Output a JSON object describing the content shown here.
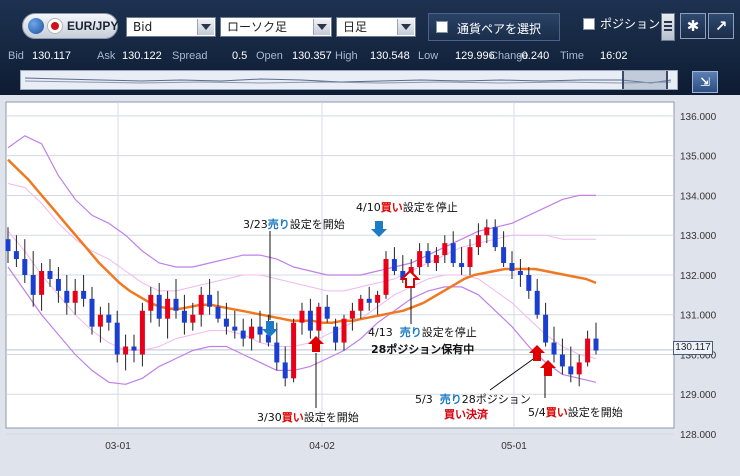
{
  "toolbar": {
    "pair": "EUR/JPY",
    "price_type": "Bid",
    "chart_type": "ローソク足",
    "timeframe": "日足",
    "pair_select_label": "通貨ペアを選択",
    "position_label": "ポジション",
    "settings_icon": "gear-icon",
    "popout_icon": "popout-icon"
  },
  "quotes": [
    {
      "label": "Bid",
      "value": "130.117"
    },
    {
      "label": "Ask",
      "value": "130.122"
    },
    {
      "label": "Spread",
      "value": "0.5"
    },
    {
      "label": "Open",
      "value": "130.357"
    },
    {
      "label": "High",
      "value": "130.548"
    },
    {
      "label": "Low",
      "value": "129.996"
    },
    {
      "label": "Change",
      "value": "-0.240"
    },
    {
      "label": "Time",
      "value": "16:02"
    }
  ],
  "current_price": "130.117",
  "annotations": {
    "a1": {
      "date": "3/23",
      "side": "売り",
      "text": "設定を開始"
    },
    "a2": {
      "date": "4/10",
      "side": "買い",
      "text": "設定を停止"
    },
    "a3": {
      "date": "4/13",
      "side": "売り",
      "text": "設定を停止",
      "line2": "28ポジション保有中"
    },
    "a4": {
      "date": "3/30",
      "side": "買い",
      "text": "設定を開始"
    },
    "a5": {
      "date": "5/3",
      "side": "売り",
      "text": "28ポジション",
      "line2": "買い決済"
    },
    "a6": {
      "date": "5/4",
      "side": "買い",
      "text": "設定を開始"
    }
  },
  "chart_data": {
    "type": "candlestick",
    "pair": "EUR/JPY",
    "timeframe": "日足",
    "y_ticks": [
      "136.000",
      "135.000",
      "134.000",
      "133.000",
      "132.000",
      "131.000",
      "130.000",
      "129.000",
      "128.000"
    ],
    "ylim": [
      128.0,
      136.3
    ],
    "x_labels": [
      "03-01",
      "04-02",
      "05-01"
    ],
    "grid": true,
    "colors": {
      "up": "#e8001a",
      "down": "#1a3fd0",
      "ma": "#f07820",
      "band_outer": "#c080e8",
      "band_inner": "#f0b8f0"
    },
    "candles": [
      {
        "o": 132.9,
        "h": 133.2,
        "l": 132.3,
        "c": 132.6
      },
      {
        "o": 132.6,
        "h": 133.0,
        "l": 132.2,
        "c": 132.4
      },
      {
        "o": 132.4,
        "h": 132.9,
        "l": 131.8,
        "c": 132.0
      },
      {
        "o": 132.0,
        "h": 132.6,
        "l": 131.2,
        "c": 131.5
      },
      {
        "o": 131.5,
        "h": 132.3,
        "l": 131.1,
        "c": 132.1
      },
      {
        "o": 132.1,
        "h": 132.4,
        "l": 131.7,
        "c": 131.9
      },
      {
        "o": 131.9,
        "h": 132.2,
        "l": 131.3,
        "c": 131.6
      },
      {
        "o": 131.6,
        "h": 132.0,
        "l": 131.0,
        "c": 131.3
      },
      {
        "o": 131.3,
        "h": 131.9,
        "l": 131.0,
        "c": 131.6
      },
      {
        "o": 131.6,
        "h": 132.0,
        "l": 131.2,
        "c": 131.4
      },
      {
        "o": 131.4,
        "h": 131.7,
        "l": 130.5,
        "c": 130.7
      },
      {
        "o": 130.7,
        "h": 131.2,
        "l": 130.3,
        "c": 131.0
      },
      {
        "o": 131.0,
        "h": 131.3,
        "l": 130.6,
        "c": 130.8
      },
      {
        "o": 130.8,
        "h": 131.1,
        "l": 129.8,
        "c": 130.0
      },
      {
        "o": 130.0,
        "h": 130.5,
        "l": 129.6,
        "c": 130.2
      },
      {
        "o": 130.2,
        "h": 130.5,
        "l": 129.8,
        "c": 130.1
      },
      {
        "o": 130.0,
        "h": 131.3,
        "l": 129.7,
        "c": 131.1
      },
      {
        "o": 131.1,
        "h": 131.7,
        "l": 130.8,
        "c": 131.5
      },
      {
        "o": 131.5,
        "h": 131.8,
        "l": 130.7,
        "c": 130.9
      },
      {
        "o": 130.9,
        "h": 131.6,
        "l": 130.4,
        "c": 131.4
      },
      {
        "o": 131.4,
        "h": 131.9,
        "l": 130.9,
        "c": 131.1
      },
      {
        "o": 131.1,
        "h": 131.5,
        "l": 130.5,
        "c": 130.8
      },
      {
        "o": 130.8,
        "h": 131.3,
        "l": 130.6,
        "c": 131.0
      },
      {
        "o": 131.0,
        "h": 131.7,
        "l": 130.7,
        "c": 131.5
      },
      {
        "o": 131.5,
        "h": 131.9,
        "l": 131.0,
        "c": 131.2
      },
      {
        "o": 131.2,
        "h": 131.6,
        "l": 130.8,
        "c": 130.9
      },
      {
        "o": 130.9,
        "h": 131.3,
        "l": 130.5,
        "c": 130.7
      },
      {
        "o": 130.7,
        "h": 131.1,
        "l": 130.4,
        "c": 130.6
      },
      {
        "o": 130.6,
        "h": 130.9,
        "l": 130.2,
        "c": 130.4
      },
      {
        "o": 130.4,
        "h": 130.9,
        "l": 130.1,
        "c": 130.7
      },
      {
        "o": 130.7,
        "h": 131.1,
        "l": 130.3,
        "c": 130.5
      },
      {
        "o": 130.5,
        "h": 131.0,
        "l": 130.2,
        "c": 130.3
      },
      {
        "o": 130.3,
        "h": 130.8,
        "l": 129.6,
        "c": 129.8
      },
      {
        "o": 129.8,
        "h": 130.2,
        "l": 129.2,
        "c": 129.4
      },
      {
        "o": 129.4,
        "h": 130.9,
        "l": 129.3,
        "c": 130.8
      },
      {
        "o": 130.8,
        "h": 131.3,
        "l": 130.5,
        "c": 131.1
      },
      {
        "o": 131.1,
        "h": 131.4,
        "l": 130.4,
        "c": 130.6
      },
      {
        "o": 130.6,
        "h": 131.3,
        "l": 130.4,
        "c": 131.2
      },
      {
        "o": 131.2,
        "h": 131.5,
        "l": 130.8,
        "c": 130.9
      },
      {
        "o": 130.7,
        "h": 130.9,
        "l": 130.1,
        "c": 130.3
      },
      {
        "o": 130.3,
        "h": 131.0,
        "l": 130.1,
        "c": 130.9
      },
      {
        "o": 130.9,
        "h": 131.3,
        "l": 130.6,
        "c": 131.1
      },
      {
        "o": 131.1,
        "h": 131.5,
        "l": 130.9,
        "c": 131.4
      },
      {
        "o": 131.4,
        "h": 131.7,
        "l": 131.1,
        "c": 131.3
      },
      {
        "o": 131.3,
        "h": 131.6,
        "l": 131.0,
        "c": 131.5
      },
      {
        "o": 131.5,
        "h": 132.6,
        "l": 131.4,
        "c": 132.4
      },
      {
        "o": 132.4,
        "h": 132.7,
        "l": 132.0,
        "c": 132.1
      },
      {
        "o": 132.1,
        "h": 132.5,
        "l": 131.8,
        "c": 131.9
      },
      {
        "o": 131.9,
        "h": 132.4,
        "l": 131.7,
        "c": 132.2
      },
      {
        "o": 132.2,
        "h": 132.8,
        "l": 132.0,
        "c": 132.6
      },
      {
        "o": 132.6,
        "h": 132.8,
        "l": 132.2,
        "c": 132.3
      },
      {
        "o": 132.3,
        "h": 132.7,
        "l": 132.1,
        "c": 132.5
      },
      {
        "o": 132.5,
        "h": 133.0,
        "l": 132.3,
        "c": 132.8
      },
      {
        "o": 132.8,
        "h": 133.1,
        "l": 132.2,
        "c": 132.3
      },
      {
        "o": 132.3,
        "h": 132.7,
        "l": 132.0,
        "c": 132.2
      },
      {
        "o": 132.2,
        "h": 132.9,
        "l": 132.0,
        "c": 132.7
      },
      {
        "o": 132.7,
        "h": 133.3,
        "l": 132.5,
        "c": 133.0
      },
      {
        "o": 133.0,
        "h": 133.4,
        "l": 132.8,
        "c": 133.2
      },
      {
        "o": 133.2,
        "h": 133.4,
        "l": 132.6,
        "c": 132.7
      },
      {
        "o": 132.7,
        "h": 133.1,
        "l": 132.2,
        "c": 132.3
      },
      {
        "o": 132.3,
        "h": 132.6,
        "l": 131.9,
        "c": 132.1
      },
      {
        "o": 132.1,
        "h": 132.4,
        "l": 131.7,
        "c": 132.0
      },
      {
        "o": 132.0,
        "h": 132.2,
        "l": 131.4,
        "c": 131.6
      },
      {
        "o": 131.6,
        "h": 131.9,
        "l": 130.9,
        "c": 131.0
      },
      {
        "o": 131.0,
        "h": 131.3,
        "l": 130.2,
        "c": 130.3
      },
      {
        "o": 130.3,
        "h": 130.7,
        "l": 129.8,
        "c": 130.0
      },
      {
        "o": 130.0,
        "h": 130.4,
        "l": 129.5,
        "c": 129.7
      },
      {
        "o": 129.7,
        "h": 130.2,
        "l": 129.3,
        "c": 129.5
      },
      {
        "o": 129.5,
        "h": 130.0,
        "l": 129.2,
        "c": 129.8
      },
      {
        "o": 129.8,
        "h": 130.6,
        "l": 129.7,
        "c": 130.4
      },
      {
        "o": 130.4,
        "h": 130.8,
        "l": 130.0,
        "c": 130.1
      }
    ],
    "ma": [
      134.9,
      134.65,
      134.4,
      134.1,
      133.8,
      133.5,
      133.2,
      132.9,
      132.6,
      132.3,
      132.05,
      131.8,
      131.6,
      131.45,
      131.3,
      131.2,
      131.15,
      131.15,
      131.2,
      131.25,
      131.25,
      131.2,
      131.15,
      131.1,
      131.05,
      131.0,
      130.95,
      130.9,
      130.85,
      130.85,
      130.85,
      130.8,
      130.8,
      130.85,
      130.85,
      130.9,
      130.95,
      131.0,
      131.05,
      131.1,
      131.2,
      131.3,
      131.45,
      131.6,
      131.75,
      131.9,
      132.0,
      132.05,
      132.1,
      132.15,
      132.15,
      132.15,
      132.15,
      132.1,
      132.05,
      132.0,
      131.95,
      131.9,
      131.8
    ],
    "bb_upper2": [
      135.2,
      135.5,
      135.3,
      134.5,
      133.9,
      133.5,
      133.3,
      133.0,
      132.6,
      132.3,
      132.2,
      132.2,
      132.3,
      132.4,
      132.5,
      132.5,
      132.4,
      132.2,
      132.1,
      132.0,
      132.0,
      132.0,
      132.1,
      132.2,
      132.3,
      132.5,
      132.7,
      132.9,
      133.1,
      133.2,
      133.3,
      133.5,
      133.7,
      133.9,
      134.0,
      134.0
    ],
    "bb_lower2": [
      132.2,
      131.6,
      131.0,
      130.5,
      130.0,
      129.6,
      129.3,
      129.25,
      129.4,
      129.7,
      129.9,
      130.1,
      130.2,
      130.2,
      130.0,
      129.8,
      129.6,
      129.6,
      129.7,
      129.9,
      130.1,
      130.4,
      130.8,
      131.1,
      131.4,
      131.6,
      131.7,
      131.7,
      131.5,
      131.1,
      130.7,
      130.2,
      129.8,
      129.5,
      129.4,
      129.3
    ],
    "bb_upper1": [
      134.3,
      134.2,
      133.8,
      133.3,
      132.9,
      132.6,
      132.4,
      132.1,
      131.8,
      131.6,
      131.6,
      131.7,
      131.8,
      131.9,
      132.0,
      132.0,
      131.9,
      131.8,
      131.7,
      131.6,
      131.6,
      131.7,
      131.8,
      131.9,
      132.1,
      132.3,
      132.5,
      132.7,
      132.8,
      132.9,
      133.0,
      133.0,
      133.0,
      132.9,
      132.9,
      132.9
    ],
    "bb_lower1": [
      133.1,
      132.6,
      132.0,
      131.5,
      131.0,
      130.6,
      130.3,
      130.1,
      130.1,
      130.2,
      130.4,
      130.5,
      130.6,
      130.6,
      130.5,
      130.3,
      130.2,
      130.2,
      130.3,
      130.5,
      130.7,
      130.9,
      131.2,
      131.5,
      131.7,
      131.9,
      132.0,
      132.0,
      131.9,
      131.6,
      131.3,
      130.9,
      130.5,
      130.2,
      130.0,
      129.9
    ]
  }
}
